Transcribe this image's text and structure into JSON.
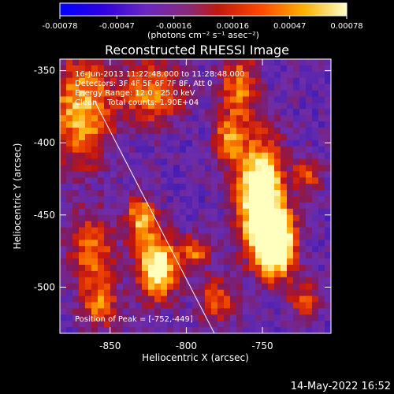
{
  "colorbar": {
    "ticks": [
      "-0.00078",
      "-0.00047",
      "-0.00016",
      "0.00016",
      "0.00047",
      "0.00078"
    ],
    "tick_values": [
      -0.00078,
      -0.00047,
      -0.00016,
      0.00016,
      0.00047,
      0.00078
    ],
    "units": "(photons cm⁻² s⁻¹ asec⁻²)"
  },
  "plot": {
    "title": "Reconstructed RHESSI Image",
    "info_lines": [
      "16-Jun-2013 11:22:48.000 to 11:28:48.000",
      "Detectors: 3F 4F 5F 6F 7F 8F, Att 0",
      "Energy Range: 12.0 - 25.0 keV",
      "Clean    Total counts: 1.90E+04"
    ],
    "peak_text": "Position of Peak = [-752,-449]",
    "xlabel": "Heliocentric X (arcsec)",
    "ylabel": "Heliocentric Y (arcsec)",
    "x_ticks": [
      "-850",
      "-800",
      "-750"
    ],
    "x_tick_values": [
      -850,
      -800,
      -750
    ],
    "y_ticks": [
      "-350",
      "-400",
      "-450",
      "-500"
    ],
    "y_tick_values": [
      -350,
      -400,
      -450,
      -500
    ],
    "x_range": [
      -883,
      -705
    ],
    "y_range": [
      -532,
      -342
    ]
  },
  "footer": {
    "date": "14-May-2022 16:52"
  },
  "colors": {
    "background": "#000000",
    "text": "#ffffff",
    "colormap": [
      "#0000ff",
      "#4a00d0",
      "#7a2bb8",
      "#a01a40",
      "#e01818",
      "#ff6a00",
      "#ffc800",
      "#ffffb0"
    ]
  }
}
